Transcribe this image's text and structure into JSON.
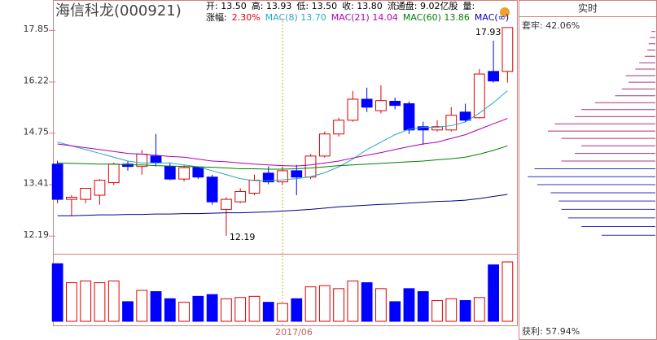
{
  "chart_data": {
    "type": "candlestick",
    "title": "海信科龙(000921)",
    "info_line1": [
      {
        "text": "开: 13.50",
        "color": "#000000"
      },
      {
        "text": "高: 13.93",
        "color": "#000000"
      },
      {
        "text": "低: 13.50",
        "color": "#000000"
      },
      {
        "text": "收: 13.80",
        "color": "#000000"
      },
      {
        "text": "流通盘: 9.02亿股",
        "color": "#000000"
      },
      {
        "text": "量:",
        "color": "#000000"
      }
    ],
    "info_line2": [
      {
        "text": "涨幅:",
        "color": "#000000"
      },
      {
        "text": "2.30%",
        "color": "#e00000"
      },
      {
        "text": "MAC(8) 13.70",
        "color": "#2aa8c0"
      },
      {
        "text": "MAC(21) 14.04",
        "color": "#b000b0"
      },
      {
        "text": "MAC(60) 13.86",
        "color": "#008000"
      },
      {
        "text": "MAC(∞)",
        "color": "#0000c0"
      }
    ],
    "open": [
      13.92,
      13.04,
      13.04,
      13.14,
      13.45,
      13.92,
      13.86,
      14.13,
      13.86,
      13.54,
      13.83,
      13.59,
      12.8,
      12.98,
      13.19,
      13.69,
      13.47,
      13.75,
      13.59,
      14.13,
      14.72,
      15.1,
      15.7,
      15.37,
      15.64,
      15.57,
      14.92,
      14.83,
      14.83,
      15.33,
      15.17,
      16.53,
      16.53
    ],
    "high": [
      14.01,
      13.14,
      13.31,
      13.54,
      13.96,
      14.01,
      14.29,
      14.72,
      13.96,
      13.9,
      13.86,
      13.65,
      13.09,
      13.31,
      13.65,
      13.86,
      13.86,
      13.9,
      14.18,
      14.79,
      15.17,
      15.94,
      16.04,
      16.11,
      15.75,
      15.64,
      15.06,
      15.1,
      15.47,
      15.57,
      16.6,
      17.5,
      17.93
    ],
    "low": [
      12.95,
      12.65,
      12.95,
      12.91,
      13.39,
      13.75,
      13.65,
      13.86,
      13.51,
      13.48,
      13.54,
      12.91,
      12.19,
      12.95,
      13.14,
      13.41,
      13.39,
      13.14,
      13.54,
      14.09,
      14.65,
      15.06,
      15.33,
      15.29,
      15.41,
      14.72,
      14.43,
      14.79,
      14.79,
      15.06,
      15.15,
      16.19,
      16.19
    ],
    "close": [
      13.04,
      13.09,
      13.31,
      13.51,
      13.92,
      13.86,
      14.18,
      13.96,
      13.54,
      13.83,
      13.59,
      12.98,
      13.04,
      13.23,
      13.51,
      13.47,
      13.75,
      13.59,
      14.13,
      14.72,
      15.1,
      15.7,
      15.47,
      15.66,
      15.52,
      14.83,
      14.83,
      14.92,
      15.24,
      15.1,
      16.45,
      16.24,
      17.93
    ],
    "up_color": "#e00000",
    "down_color": "#0000ff",
    "ma": [
      {
        "color": "#2aa8c0",
        "values": [
          14.5,
          14.4,
          14.3,
          14.2,
          14.1,
          14.0,
          13.95,
          13.95,
          13.95,
          13.9,
          13.85,
          13.75,
          13.65,
          13.55,
          13.5,
          13.5,
          13.52,
          13.55,
          13.6,
          13.7,
          13.85,
          14.05,
          14.3,
          14.5,
          14.7,
          14.85,
          14.9,
          14.9,
          14.95,
          15.05,
          15.3,
          15.6,
          15.95
        ]
      },
      {
        "color": "#b000b0",
        "values": [
          14.45,
          14.4,
          14.35,
          14.3,
          14.25,
          14.2,
          14.18,
          14.15,
          14.12,
          14.1,
          14.05,
          14.0,
          13.98,
          13.95,
          13.92,
          13.9,
          13.88,
          13.87,
          13.9,
          13.95,
          14.0,
          14.08,
          14.15,
          14.22,
          14.3,
          14.38,
          14.45,
          14.5,
          14.6,
          14.7,
          14.85,
          15.0,
          15.15
        ]
      },
      {
        "color": "#008000",
        "values": [
          13.95,
          13.94,
          13.93,
          13.92,
          13.92,
          13.9,
          13.9,
          13.88,
          13.87,
          13.86,
          13.85,
          13.84,
          13.82,
          13.8,
          13.8,
          13.79,
          13.79,
          13.8,
          13.82,
          13.85,
          13.88,
          13.9,
          13.92,
          13.94,
          13.96,
          13.98,
          14.0,
          14.03,
          14.06,
          14.1,
          14.18,
          14.28,
          14.4
        ]
      },
      {
        "color": "#000080",
        "values": [
          12.65,
          12.65,
          12.66,
          12.67,
          12.67,
          12.68,
          12.68,
          12.69,
          12.69,
          12.7,
          12.7,
          12.71,
          12.72,
          12.72,
          12.73,
          12.74,
          12.76,
          12.78,
          12.8,
          12.83,
          12.86,
          12.88,
          12.9,
          12.92,
          12.93,
          12.95,
          12.97,
          12.99,
          13.0,
          13.02,
          13.06,
          13.11,
          13.16
        ]
      }
    ],
    "ylim": [
      12.04,
      18.09
    ],
    "log_scale": true,
    "yticks": [
      17.85,
      16.22,
      14.75,
      13.41,
      12.19
    ],
    "max_label": 17.93,
    "min_label": 12.19,
    "volume": {
      "ylim": [
        0,
        100
      ],
      "values": [
        97,
        65,
        68,
        65,
        68,
        33,
        52,
        50,
        38,
        32,
        42,
        45,
        38,
        40,
        42,
        32,
        30,
        38,
        58,
        60,
        55,
        68,
        65,
        55,
        33,
        55,
        50,
        35,
        38,
        35,
        40,
        95,
        100
      ]
    },
    "x_marker": {
      "index": 16,
      "label": "2017/06"
    },
    "side_title": "实时",
    "trapped_label": "套牢: 42.06%",
    "profit_label": "获利: 57.94%",
    "chips": [
      {
        "color": "#3030c0",
        "prices": [
          12.2,
          12.4,
          12.6,
          12.8,
          13.0,
          13.2,
          13.4,
          13.6,
          13.8
        ],
        "amounts": [
          40,
          55,
          65,
          70,
          72,
          78,
          88,
          95,
          90
        ]
      },
      {
        "color": "#b03080",
        "prices": [
          14.0,
          14.2,
          14.4,
          14.6,
          14.8,
          15.0,
          15.2,
          15.4,
          15.6,
          15.8,
          16.0,
          16.2,
          16.4,
          16.6,
          16.8,
          17.0,
          17.2,
          17.4,
          17.6,
          17.8
        ],
        "amounts": [
          70,
          60,
          55,
          70,
          80,
          75,
          60,
          55,
          45,
          30,
          25,
          20,
          22,
          15,
          12,
          8,
          6,
          5,
          4,
          3
        ]
      }
    ]
  }
}
